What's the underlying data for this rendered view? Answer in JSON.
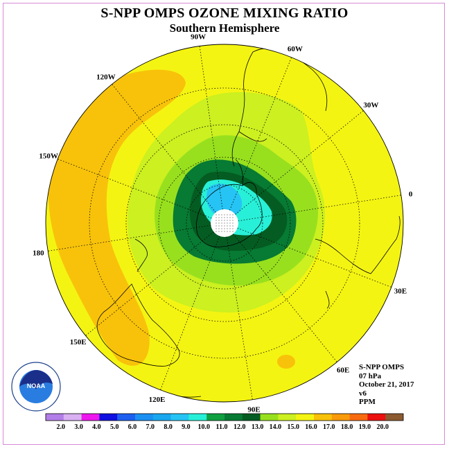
{
  "title": "S-NPP OMPS OZONE MIXING RATIO",
  "subtitle": "Southern Hemisphere",
  "longitude_labels": [
    "90W",
    "60W",
    "30W",
    "0",
    "30E",
    "60E",
    "90E",
    "120E",
    "150E",
    "180",
    "150W",
    "120W"
  ],
  "info": {
    "instrument": "S-NPP OMPS",
    "level": "07 hPa",
    "date": "October 21, 2017",
    "version": "v6",
    "units": "PPM"
  },
  "logo": {
    "text": "NOAA",
    "ring_text": "NATIONAL OCEANIC AND ATMOSPHERIC ADMINISTRATION - U.S. DEPARTMENT OF COMMERCE"
  },
  "colorbar": {
    "labels": [
      "2.0",
      "3.0",
      "4.0",
      "5.0",
      "6.0",
      "7.0",
      "8.0",
      "9.0",
      "10.0",
      "11.0",
      "12.0",
      "13.0",
      "14.0",
      "15.0",
      "16.0",
      "17.0",
      "18.0",
      "19.0",
      "20.0"
    ],
    "colors": [
      "#b27ee8",
      "#d9b0f2",
      "#ee18ee",
      "#1010e0",
      "#1e5ff0",
      "#1c90f2",
      "#1aa7f0",
      "#26c4f4",
      "#28f0d8",
      "#10a040",
      "#077a33",
      "#045c22",
      "#98e01e",
      "#ccf020",
      "#f4f412",
      "#f8c20a",
      "#f89a0a",
      "#f86a10",
      "#ec1010",
      "#8c5a30"
    ]
  },
  "map_colors": {
    "background": "#f4f412",
    "orange": "#f8c20a",
    "light_green": "#ccf020",
    "green": "#98e01e",
    "dark_green": "#077a33",
    "darker_green": "#045c22",
    "cyan": "#28f0d8",
    "blue": "#26c4f4",
    "pole": "#ffffff"
  }
}
